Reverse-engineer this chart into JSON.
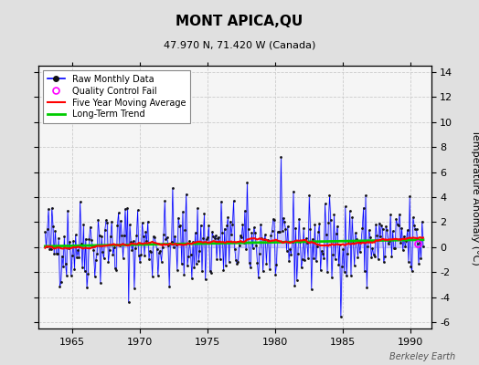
{
  "title": "MONT APICA,QU",
  "subtitle": "47.970 N, 71.420 W (Canada)",
  "ylabel": "Temperature Anomaly (°C)",
  "watermark": "Berkeley Earth",
  "ylim": [
    -6.5,
    14.5
  ],
  "yticks": [
    -6,
    -4,
    -2,
    0,
    2,
    4,
    6,
    8,
    10,
    12,
    14
  ],
  "xlim": [
    1962.5,
    1991.5
  ],
  "xticks": [
    1965,
    1970,
    1975,
    1980,
    1985,
    1990
  ],
  "bg_color": "#e0e0e0",
  "plot_bg_color": "#f5f5f5",
  "raw_color": "#0000ff",
  "raw_fill_color": "#aaaaff",
  "moving_avg_color": "#ff0000",
  "trend_color": "#00cc00",
  "qc_color": "#ff00ff",
  "seed": 42,
  "years_start": 1963,
  "years_end": 1990
}
